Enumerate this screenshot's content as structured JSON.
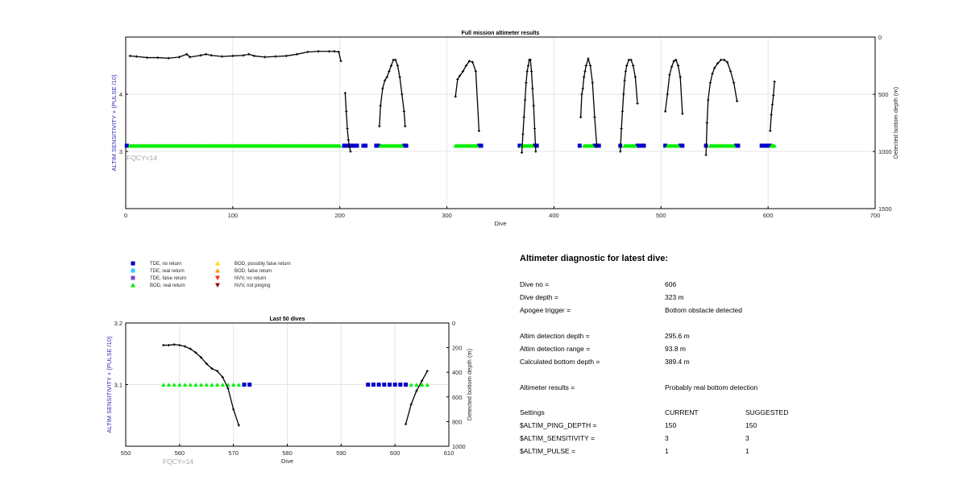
{
  "colors": {
    "tde_no_return": "#0000cc",
    "tde_real_return": "#33ccff",
    "tde_false_return": "#7744cc",
    "bod_real_return": "#00ee00",
    "bod_possibly_false": "#ffd700",
    "bod_false_return": "#ff9900",
    "nvv_no_return": "#ee3300",
    "nvv_not_pinging": "#881100",
    "depth_line": "#000000",
    "left_axis_label": "#2b2bb5",
    "fqcy_text": "#a6a6a6"
  },
  "legend": [
    {
      "label": "TDE, no return",
      "marker": "square",
      "color_key": "tde_no_return"
    },
    {
      "label": "TDE, real return",
      "marker": "square",
      "color_key": "tde_real_return"
    },
    {
      "label": "TDE, false return",
      "marker": "square",
      "color_key": "tde_false_return"
    },
    {
      "label": "BOD, real return",
      "marker": "triangle-up",
      "color_key": "bod_real_return"
    },
    {
      "label": "BOD, possibly false return",
      "marker": "triangle-up",
      "color_key": "bod_possibly_false"
    },
    {
      "label": "BOD, false return",
      "marker": "triangle-up",
      "color_key": "bod_false_return"
    },
    {
      "label": "NVV, no return",
      "marker": "triangle-down",
      "color_key": "nvv_no_return"
    },
    {
      "label": "NVV, not pinging",
      "marker": "triangle-down",
      "color_key": "nvv_not_pinging"
    }
  ],
  "chart_data": [
    {
      "type": "scatter",
      "title": "Full mission altimeter results",
      "xlabel": "Dive",
      "ylabel_left": "ALTIM SENSITIVITY + (PULSE /10)",
      "ylabel_right": "Detected bottom depth (m)",
      "annotation": "FQCY=14",
      "xlim": [
        0,
        700
      ],
      "xticks": [
        0,
        100,
        200,
        300,
        400,
        500,
        600,
        700
      ],
      "ylim_left": [
        2.0,
        5.0
      ],
      "yticks_left": [
        3,
        4
      ],
      "ylim_right": [
        0,
        1500
      ],
      "yticks_right": [
        0,
        500,
        1000,
        1500
      ],
      "right_axis_reversed": true,
      "grid": true,
      "marker_y_left": 3.1,
      "tde_no_return_dives": [
        1,
        204,
        206,
        208,
        210,
        212,
        214,
        216,
        222,
        224,
        234,
        236,
        260,
        262,
        330,
        332,
        368,
        382,
        384,
        424,
        438,
        440,
        442,
        462,
        478,
        480,
        482,
        484,
        504,
        518,
        520,
        542,
        570,
        572,
        594,
        596,
        598,
        600,
        602
      ],
      "bod_real_return_ranges": [
        [
          4,
          200
        ],
        [
          238,
          258
        ],
        [
          308,
          328
        ],
        [
          370,
          380
        ],
        [
          428,
          436
        ],
        [
          466,
          476
        ],
        [
          506,
          516
        ],
        [
          546,
          568
        ],
        [
          603,
          606
        ]
      ],
      "depth_segments": [
        {
          "dives": [
            4,
            10,
            20,
            30,
            40,
            50,
            57,
            60,
            70,
            75,
            80,
            90,
            100,
            110,
            115,
            120,
            130,
            140,
            150,
            160,
            170,
            180,
            190,
            195,
            199,
            201
          ],
          "depth": [
            165,
            170,
            180,
            180,
            185,
            175,
            150,
            175,
            160,
            150,
            160,
            170,
            165,
            160,
            150,
            165,
            175,
            170,
            165,
            150,
            130,
            125,
            125,
            125,
            130,
            210
          ]
        },
        {
          "dives": [
            205,
            206,
            207,
            208,
            209,
            210
          ],
          "depth": [
            490,
            650,
            800,
            900,
            960,
            1000
          ]
        },
        {
          "dives": [
            237,
            238,
            240,
            242,
            244,
            246,
            248,
            250,
            252,
            254,
            256,
            258,
            260,
            261
          ],
          "depth": [
            780,
            600,
            450,
            380,
            350,
            300,
            250,
            200,
            200,
            250,
            350,
            500,
            650,
            780
          ]
        },
        {
          "dives": [
            308,
            310,
            312,
            315,
            318,
            321,
            324,
            327,
            330
          ],
          "depth": [
            520,
            370,
            340,
            300,
            250,
            210,
            220,
            300,
            820
          ]
        },
        {
          "dives": [
            370,
            371,
            372,
            373,
            374,
            375,
            376,
            377,
            378,
            379,
            380,
            381,
            382,
            383
          ],
          "depth": [
            1010,
            850,
            700,
            550,
            400,
            300,
            250,
            200,
            200,
            300,
            450,
            600,
            800,
            1000
          ]
        },
        {
          "dives": [
            425,
            426,
            427,
            428,
            429,
            430,
            432,
            434,
            436,
            438,
            440
          ],
          "depth": [
            700,
            500,
            450,
            350,
            300,
            250,
            190,
            250,
            400,
            700,
            950
          ]
        },
        {
          "dives": [
            462,
            463,
            464,
            465,
            466,
            467,
            468,
            470,
            472,
            474,
            476,
            478
          ],
          "depth": [
            1000,
            800,
            650,
            500,
            380,
            300,
            250,
            200,
            200,
            250,
            350,
            580
          ]
        },
        {
          "dives": [
            504,
            506,
            508,
            510,
            512,
            514,
            516,
            518,
            520
          ],
          "depth": [
            650,
            500,
            330,
            260,
            210,
            200,
            250,
            350,
            670
          ]
        },
        {
          "dives": [
            542,
            543,
            544,
            546,
            548,
            550,
            553,
            556,
            559,
            562,
            565,
            568,
            571
          ],
          "depth": [
            1030,
            750,
            550,
            400,
            320,
            270,
            230,
            200,
            200,
            220,
            300,
            400,
            560
          ]
        },
        {
          "dives": [
            602,
            603,
            604,
            605,
            606
          ],
          "depth": [
            820,
            680,
            590,
            510,
            390
          ]
        }
      ]
    },
    {
      "type": "scatter",
      "title": "Last 50 dives",
      "xlabel": "Dive",
      "ylabel_left": "ALTIM SENSITIVITY + (PULSE /10)",
      "ylabel_right": "Detected bottom depth (m)",
      "annotation": "FQCY=14",
      "xlim": [
        550,
        610
      ],
      "xticks": [
        550,
        560,
        570,
        580,
        590,
        600,
        610
      ],
      "ylim_left": [
        3.0,
        3.2
      ],
      "yticks_left": [
        3.1,
        3.2
      ],
      "ylim_right": [
        0,
        1000
      ],
      "yticks_right": [
        0,
        200,
        400,
        600,
        800,
        1000
      ],
      "right_axis_reversed": true,
      "grid": true,
      "marker_y_left": 3.1,
      "bod_real_return_dives": [
        557,
        558,
        559,
        560,
        561,
        562,
        563,
        564,
        565,
        566,
        567,
        568,
        569,
        570,
        571,
        603,
        604,
        605,
        606
      ],
      "tde_no_return_dives": [
        572,
        573,
        595,
        596,
        597,
        598,
        599,
        600,
        601,
        602
      ],
      "depth_segments": [
        {
          "dives": [
            557,
            558,
            559,
            560,
            561,
            562,
            563,
            564,
            565,
            566,
            567,
            568,
            569,
            570,
            571
          ],
          "depth": [
            180,
            180,
            175,
            180,
            190,
            210,
            240,
            280,
            330,
            370,
            390,
            440,
            530,
            700,
            830
          ]
        },
        {
          "dives": [
            602,
            603,
            604,
            605,
            606
          ],
          "depth": [
            820,
            660,
            550,
            470,
            390
          ]
        }
      ]
    }
  ],
  "diagnostic": {
    "title": "Altimeter diagnostic for latest dive:",
    "rows": [
      {
        "label": "Dive no =",
        "value": "606"
      },
      {
        "label": "Dive depth =",
        "value": "323 m"
      },
      {
        "label": "Apogee trigger =",
        "value": "Bottom obstacle detected"
      },
      {
        "label": "Altim detection depth =",
        "value": "295.6 m"
      },
      {
        "label": "Altim detection range =",
        "value": "93.8 m"
      },
      {
        "label": "Calculated bottom depth =",
        "value": "389.4 m"
      },
      {
        "label": "Altimeter results =",
        "value": "Probably real bottom detection"
      }
    ],
    "settings_header": {
      "label": "Settings",
      "current": "CURRENT",
      "suggested": "SUGGESTED"
    },
    "settings": [
      {
        "label": "$ALTIM_PING_DEPTH =",
        "current": "150",
        "suggested": "150"
      },
      {
        "label": "$ALTIM_SENSITIVITY =",
        "current": "3",
        "suggested": "3"
      },
      {
        "label": "$ALTIM_PULSE =",
        "current": "1",
        "suggested": "1"
      }
    ]
  }
}
